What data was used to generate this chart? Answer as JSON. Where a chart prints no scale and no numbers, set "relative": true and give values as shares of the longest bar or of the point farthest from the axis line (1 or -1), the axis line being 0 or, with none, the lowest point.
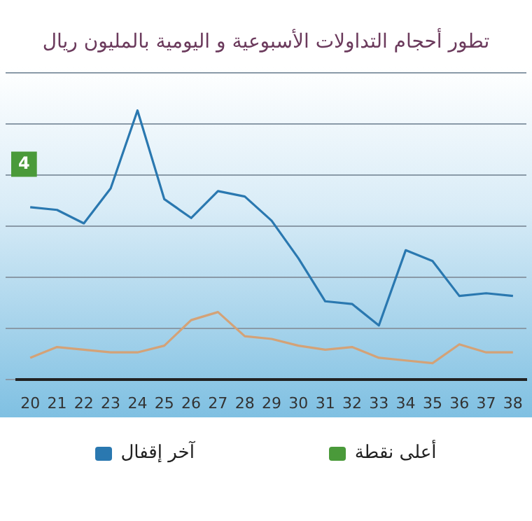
{
  "chart_data": {
    "type": "line",
    "title": "تطور أحجام التداولات الأسبوعية و اليومية بالمليون ريال",
    "relative": true,
    "categories": [
      "20",
      "21",
      "22",
      "23",
      "24",
      "25",
      "26",
      "27",
      "28",
      "29",
      "30",
      "31",
      "32",
      "33",
      "34",
      "35",
      "36",
      "37",
      "38"
    ],
    "series": [
      {
        "name": "آخر إقفال",
        "color": "#2a78b0",
        "values": [
          0.64,
          0.63,
          0.58,
          0.71,
          1,
          0.67,
          0.6,
          0.7,
          0.68,
          0.59,
          0.45,
          0.29,
          0.28,
          0.2,
          0.48,
          0.44,
          0.31,
          0.32,
          0.31
        ]
      },
      {
        "color": "#d4a277",
        "values": [
          0.08,
          0.12,
          0.11,
          0.1,
          0.1,
          0.125,
          0.22,
          0.25,
          0.16,
          0.15,
          0.125,
          0.11,
          0.12,
          0.08,
          0.07,
          0.06,
          0.13,
          0.1,
          0.1
        ]
      },
      {
        "name": "أعلى نقطة",
        "color": "#4a9a3a",
        "values": [
          null,
          null,
          null,
          null,
          null,
          null,
          null,
          null,
          null,
          null,
          null,
          null,
          null,
          null,
          null,
          null,
          null,
          null,
          null
        ]
      }
    ],
    "annotations": [
      "4"
    ],
    "grid": "y",
    "legend": "bottom",
    "marker": "none",
    "line_style": "solid"
  }
}
